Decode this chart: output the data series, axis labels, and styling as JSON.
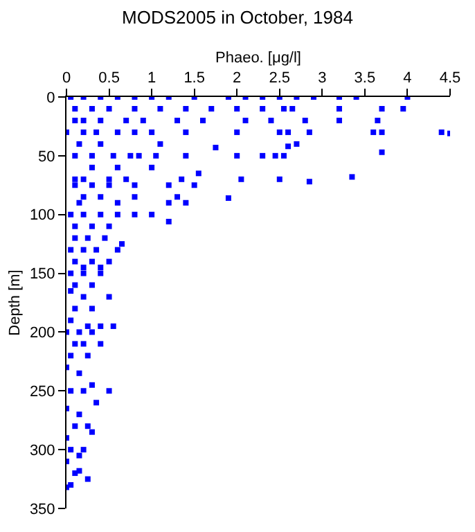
{
  "chart_data": {
    "type": "scatter",
    "title": "MODS2005 in October, 1984",
    "xlabel": "Phaeo. [μg/l]",
    "ylabel": "Depth [m]",
    "xlim": [
      0,
      4.5
    ],
    "xticks": [
      0,
      0.5,
      1,
      1.5,
      2,
      2.5,
      3,
      3.5,
      4,
      4.5
    ],
    "ylim": [
      350,
      0
    ],
    "yticks": [
      0,
      50,
      100,
      150,
      200,
      250,
      300,
      350
    ],
    "marker": "square",
    "color": "#0000ff",
    "x": [
      0.05,
      0.2,
      0.4,
      0.6,
      0.8,
      1.0,
      1.2,
      1.5,
      1.9,
      2.1,
      2.3,
      2.5,
      2.7,
      2.9,
      3.2,
      3.4,
      4.0,
      0.1,
      0.3,
      0.5,
      0.8,
      1.1,
      1.4,
      1.7,
      2.0,
      2.3,
      2.55,
      2.65,
      3.2,
      3.7,
      3.95,
      0.1,
      0.2,
      0.4,
      0.7,
      0.9,
      1.3,
      1.6,
      2.1,
      2.4,
      2.8,
      3.2,
      3.65,
      0.0,
      0.2,
      0.35,
      0.6,
      0.8,
      1.0,
      1.4,
      2.0,
      2.5,
      2.6,
      2.85,
      3.6,
      3.7,
      4.4,
      4.5,
      0.15,
      0.4,
      1.1,
      1.75,
      2.6,
      2.7,
      0.1,
      0.3,
      0.55,
      0.75,
      0.85,
      1.05,
      1.4,
      2.0,
      2.3,
      2.45,
      2.55,
      3.7,
      0.3,
      0.6,
      1.0,
      1.55,
      0.1,
      0.2,
      0.5,
      0.7,
      1.35,
      2.05,
      2.5,
      2.85,
      3.35,
      0.1,
      0.3,
      0.5,
      0.8,
      1.2,
      1.5,
      0.2,
      0.4,
      0.8,
      1.3,
      1.9,
      0.15,
      0.6,
      1.2,
      1.4,
      0.05,
      0.2,
      0.4,
      0.6,
      0.8,
      1.0,
      1.2,
      0.1,
      0.3,
      0.5,
      0.1,
      0.25,
      0.45,
      0.65,
      0.05,
      0.2,
      0.35,
      0.6,
      0.1,
      0.3,
      0.5,
      0.2,
      0.4,
      0.05,
      0.2,
      0.4,
      0.1,
      0.3,
      0.05,
      0.2,
      0.5,
      0.1,
      0.3,
      0.05,
      0.25,
      0.4,
      0.55,
      0.0,
      0.15,
      0.3,
      0.1,
      0.2,
      0.4,
      0.05,
      0.25,
      0.0,
      0.15,
      0.3,
      0.5,
      0.05,
      0.2,
      0.35,
      0.0,
      0.15,
      0.25,
      0.1,
      0.3,
      0.0,
      0.2,
      0.05,
      0.15,
      0.0,
      0.1,
      0.25,
      0.05,
      0.15,
      0.0
    ],
    "values": [
      0,
      0,
      0,
      0,
      0,
      0,
      0,
      0,
      0,
      0,
      0,
      0,
      0,
      0,
      0,
      0,
      0,
      10,
      10,
      10,
      10,
      10,
      10,
      10,
      10,
      10,
      10,
      10,
      10,
      10,
      10,
      20,
      20,
      20,
      20,
      20,
      20,
      20,
      20,
      20,
      20,
      20,
      20,
      30,
      30,
      30,
      30,
      30,
      30,
      30,
      30,
      30,
      30,
      30,
      30,
      30,
      30,
      31,
      40,
      40,
      40,
      43,
      42,
      40,
      50,
      50,
      50,
      50,
      50,
      50,
      50,
      50,
      50,
      50,
      50,
      47,
      60,
      60,
      60,
      65,
      70,
      70,
      70,
      70,
      70,
      70,
      70,
      72,
      68,
      75,
      75,
      75,
      75,
      75,
      75,
      85,
      85,
      85,
      85,
      86,
      90,
      90,
      90,
      90,
      100,
      100,
      100,
      100,
      100,
      100,
      106,
      110,
      110,
      110,
      120,
      120,
      120,
      125,
      130,
      130,
      130,
      130,
      140,
      140,
      140,
      145,
      145,
      150,
      150,
      150,
      160,
      160,
      165,
      170,
      170,
      180,
      180,
      190,
      195,
      195,
      195,
      200,
      200,
      200,
      210,
      210,
      210,
      220,
      220,
      230,
      235,
      245,
      250,
      250,
      250,
      260,
      265,
      270,
      280,
      280,
      285,
      290,
      300,
      300,
      305,
      310,
      320,
      325,
      330,
      318,
      332
    ]
  }
}
